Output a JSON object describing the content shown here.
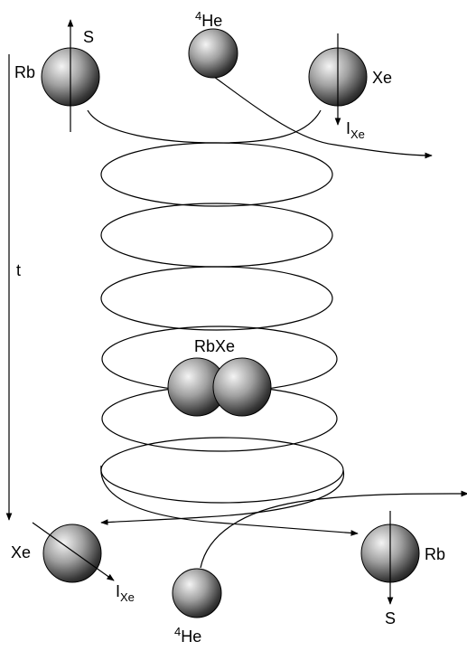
{
  "labels": {
    "spin_s": "S",
    "rubidium": "Rb",
    "helium_mass": "4",
    "helium": "He",
    "xenon": "Xe",
    "spin_i": "I",
    "spin_i_subscript": "Xe",
    "time": "t",
    "molecule": "RbXe"
  },
  "colors": {
    "stroke": "#000000",
    "sphere_highlight": "#f4f4f4",
    "sphere_mid": "#8c8c8c",
    "sphere_shadow": "#1e1e1e"
  }
}
